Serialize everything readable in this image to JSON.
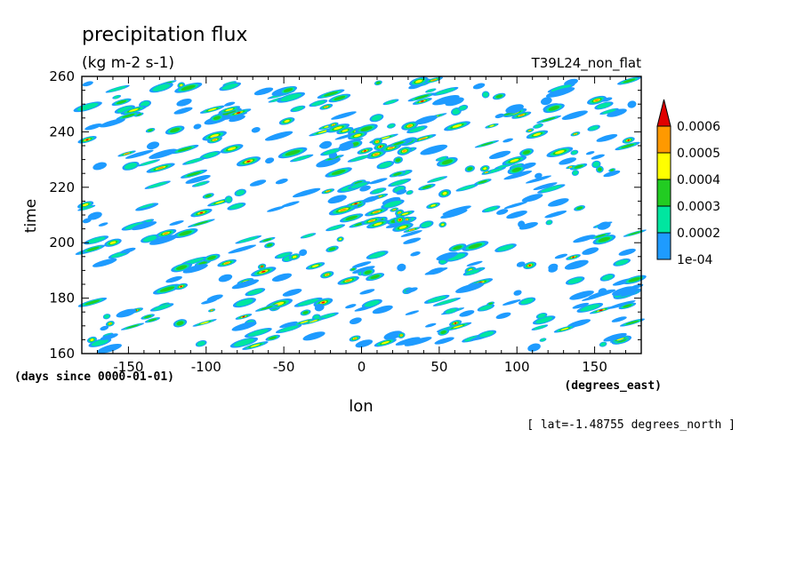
{
  "chart_data": {
    "type": "heatmap",
    "title": "precipitation flux",
    "units": "(kg m-2 s-1)",
    "experiment": "T39L24_non_flat",
    "xlabel": "lon",
    "x_units": "(degrees_east)",
    "ylabel": "time",
    "y_units": "(days since 0000-01-01)",
    "footnote": "[ lat=-1.48755 degrees_north ]",
    "xlim": [
      -180,
      180
    ],
    "ylim": [
      160,
      260
    ],
    "x_ticks": [
      -150,
      -100,
      -50,
      0,
      50,
      100,
      150
    ],
    "x_tick_labels": [
      "-150",
      "-100",
      "-50",
      "0",
      "50",
      "100",
      "150"
    ],
    "y_ticks": [
      160,
      180,
      200,
      220,
      240,
      260
    ],
    "y_tick_labels": [
      "160",
      "180",
      "200",
      "220",
      "240",
      "260"
    ],
    "colorbar": {
      "levels": [
        0.0001,
        0.0002,
        0.0003,
        0.0004,
        0.0005,
        0.0006
      ],
      "level_labels": [
        "1e-04",
        "0.0002",
        "0.0003",
        "0.0004",
        "0.0005",
        "0.0006"
      ],
      "colors": [
        "#1e9bff",
        "#00e6a0",
        "#22cc22",
        "#ffff00",
        "#ff9900",
        "#e00000"
      ],
      "extend": "max"
    }
  }
}
